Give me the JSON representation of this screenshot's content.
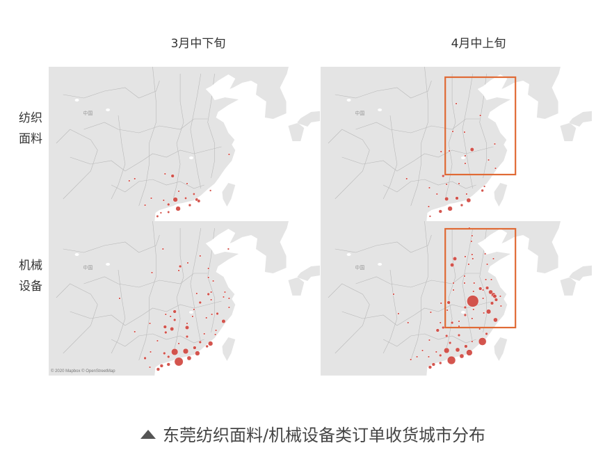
{
  "columns": [
    "3月中下旬",
    "4月中上旬"
  ],
  "rows": [
    "纺织\n面料",
    "机械\n设备"
  ],
  "row_lines": [
    [
      "纺织",
      "面料"
    ],
    [
      "机械",
      "设备"
    ]
  ],
  "map_label": "中国",
  "attribution": "© 2020 Mapbox © OpenStreetMap",
  "caption": "东莞纺织面料/机械设备类订单收货城市分布",
  "colors": {
    "bubble": "#d0463f",
    "highlight_box": "#e06a35",
    "land": "#e4e4e4",
    "sea": "#ffffff"
  },
  "chart_data": {
    "type": "bubble-map",
    "size_unit": "relative order volume",
    "panels": [
      {
        "row": "纺织面料",
        "column": "3月中下旬",
        "highlight_box": null,
        "points": [
          [
            112.9,
            26.3,
            3
          ],
          [
            111.8,
            26.6,
            1
          ],
          [
            107.4,
            25.9,
            1
          ],
          [
            106.6,
            25.6,
            1
          ],
          [
            115.0,
            25.2,
            1
          ],
          [
            118.4,
            24.2,
            1
          ],
          [
            113.8,
            24.1,
            1
          ],
          [
            116.0,
            23.7,
            1.5
          ],
          [
            113.3,
            22.9,
            6
          ],
          [
            114.8,
            23.1,
            1.5
          ],
          [
            116.4,
            22.9,
            2.5
          ],
          [
            116.7,
            22.7,
            2.5
          ],
          [
            111.6,
            22.8,
            1
          ],
          [
            109.8,
            23.1,
            1
          ],
          [
            108.9,
            22.1,
            1
          ],
          [
            112.3,
            22.2,
            2
          ],
          [
            115.4,
            22.1,
            2
          ],
          [
            113.7,
            21.6,
            6
          ],
          [
            112.3,
            21.1,
            1.5
          ],
          [
            111.2,
            21.0,
            1
          ],
          [
            110.7,
            20.5,
            1.5
          ],
          [
            121.1,
            29.4,
            1
          ]
        ]
      },
      {
        "row": "纺织面料",
        "column": "4月中上旬",
        "highlight_box": {
          "lon": [
            113.0,
            123.2
          ],
          "lat": [
            26.5,
            40.5
          ]
        },
        "points": [
          [
            114.6,
            36.7,
            1
          ],
          [
            118.1,
            35.0,
            1
          ],
          [
            114.1,
            32.7,
            1
          ],
          [
            115.8,
            32.6,
            1
          ],
          [
            116.9,
            30.1,
            4
          ],
          [
            120.2,
            30.9,
            1
          ],
          [
            113.6,
            29.9,
            1
          ],
          [
            112.4,
            29.8,
            1
          ],
          [
            115.9,
            29.2,
            1
          ],
          [
            115.9,
            28.1,
            1
          ],
          [
            119.3,
            28.6,
            1
          ],
          [
            120.3,
            27.4,
            1
          ],
          [
            112.7,
            26.3,
            2
          ],
          [
            107.4,
            25.9,
            1
          ],
          [
            113.2,
            25.1,
            1
          ],
          [
            115.0,
            25.2,
            1
          ],
          [
            118.7,
            24.8,
            1
          ],
          [
            118.4,
            24.2,
            2
          ],
          [
            110.7,
            24.6,
            1
          ],
          [
            111.8,
            23.7,
            1
          ],
          [
            116.1,
            23.7,
            1
          ],
          [
            113.2,
            23.0,
            4
          ],
          [
            114.7,
            23.1,
            3
          ],
          [
            116.4,
            22.8,
            5
          ],
          [
            115.4,
            22.1,
            2
          ],
          [
            113.7,
            21.6,
            6
          ],
          [
            112.3,
            21.2,
            3
          ],
          [
            110.6,
            21.9,
            1
          ],
          [
            110.8,
            20.5,
            1
          ]
        ]
      },
      {
        "row": "机械设备",
        "column": "3月中下旬",
        "highlight_box": null,
        "points": [
          [
            111.5,
            38.0,
            1
          ],
          [
            121.0,
            38.0,
            1
          ],
          [
            116.9,
            37.0,
            1
          ],
          [
            114.0,
            35.5,
            2
          ],
          [
            115.1,
            36.0,
            1
          ],
          [
            113.8,
            34.9,
            1
          ],
          [
            118.1,
            35.2,
            1
          ],
          [
            109.9,
            34.6,
            1
          ],
          [
            118.1,
            33.9,
            1
          ],
          [
            118.8,
            33.4,
            1
          ],
          [
            118.5,
            31.8,
            1
          ],
          [
            120.5,
            31.8,
            1
          ],
          [
            118.1,
            31.5,
            2
          ],
          [
            116.4,
            31.6,
            1
          ],
          [
            120.3,
            31.1,
            1
          ],
          [
            121.1,
            30.9,
            1
          ],
          [
            118.5,
            30.7,
            1
          ],
          [
            116.9,
            30.3,
            2
          ],
          [
            121.1,
            29.6,
            1
          ],
          [
            105.2,
            30.9,
            1
          ],
          [
            113.2,
            29.0,
            3
          ],
          [
            116.0,
            29.3,
            1
          ],
          [
            115.8,
            28.3,
            1
          ],
          [
            117.8,
            28.1,
            1
          ],
          [
            118.6,
            28.6,
            1
          ],
          [
            119.4,
            28.7,
            2
          ],
          [
            111.9,
            28.6,
            1
          ],
          [
            112.6,
            28.3,
            1
          ],
          [
            113.2,
            27.8,
            2
          ],
          [
            120.3,
            27.6,
            4
          ],
          [
            109.6,
            27.3,
            1
          ],
          [
            115.0,
            27.3,
            1
          ],
          [
            111.8,
            26.8,
            3
          ],
          [
            112.8,
            26.5,
            4
          ],
          [
            115.0,
            26.7,
            4
          ],
          [
            107.4,
            26.1,
            1
          ],
          [
            111.9,
            26.0,
            2
          ],
          [
            119.2,
            26.3,
            1
          ],
          [
            119.1,
            25.7,
            1
          ],
          [
            115.0,
            25.4,
            2
          ],
          [
            117.5,
            25.8,
            1
          ],
          [
            110.7,
            24.8,
            1
          ],
          [
            113.8,
            24.4,
            1
          ],
          [
            116.9,
            24.6,
            2
          ],
          [
            118.4,
            24.4,
            6
          ],
          [
            117.9,
            24.0,
            2
          ],
          [
            116.1,
            23.8,
            3
          ],
          [
            113.2,
            23.2,
            12
          ],
          [
            114.8,
            23.3,
            8
          ],
          [
            116.5,
            23.0,
            6
          ],
          [
            111.7,
            23.0,
            2
          ],
          [
            109.7,
            23.2,
            1
          ],
          [
            108.9,
            22.3,
            2
          ],
          [
            112.3,
            22.5,
            2
          ],
          [
            115.3,
            22.3,
            5
          ],
          [
            113.8,
            21.8,
            20
          ],
          [
            112.3,
            21.4,
            3
          ],
          [
            111.3,
            21.2,
            3
          ],
          [
            110.8,
            20.7,
            3
          ],
          [
            109.6,
            21.0,
            1
          ]
        ]
      },
      {
        "row": "机械设备",
        "column": "4月中上旬",
        "highlight_box": {
          "lon": [
            113.0,
            123.2
          ],
          "lat": [
            26.7,
            40.9
          ]
        },
        "points": [
          [
            116.8,
            39.1,
            1
          ],
          [
            116.5,
            41.0,
            1
          ],
          [
            116.9,
            39.9,
            1
          ],
          [
            114.4,
            36.6,
            4
          ],
          [
            114.0,
            35.7,
            4
          ],
          [
            115.9,
            36.9,
            1
          ],
          [
            116.9,
            37.2,
            1
          ],
          [
            117.0,
            36.6,
            1
          ],
          [
            118.8,
            37.3,
            1
          ],
          [
            120.0,
            36.6,
            1
          ],
          [
            119.1,
            35.8,
            1
          ],
          [
            116.4,
            35.8,
            1
          ],
          [
            115.8,
            34.1,
            1
          ],
          [
            114.2,
            33.1,
            1
          ],
          [
            115.8,
            33.1,
            1
          ],
          [
            117.2,
            33.1,
            1
          ],
          [
            118.9,
            33.6,
            1
          ],
          [
            119.7,
            33.6,
            1
          ],
          [
            118.1,
            32.3,
            3
          ],
          [
            118.5,
            32.1,
            1
          ],
          [
            119.1,
            32.4,
            3
          ],
          [
            119.6,
            31.8,
            5
          ],
          [
            120.0,
            31.4,
            5
          ],
          [
            120.2,
            31.2,
            4
          ],
          [
            120.4,
            30.7,
            3
          ],
          [
            121.0,
            31.2,
            1
          ],
          [
            117.1,
            31.9,
            1
          ],
          [
            114.2,
            32.1,
            1
          ],
          [
            117.0,
            30.5,
            36
          ],
          [
            118.5,
            30.9,
            1
          ],
          [
            119.8,
            30.2,
            3
          ],
          [
            121.1,
            29.8,
            1
          ],
          [
            113.5,
            30.3,
            3
          ],
          [
            112.4,
            30.2,
            1
          ],
          [
            115.9,
            29.6,
            2
          ],
          [
            117.1,
            29.3,
            1
          ],
          [
            119.3,
            29.0,
            6
          ],
          [
            118.6,
            28.8,
            1
          ],
          [
            113.3,
            29.2,
            1
          ],
          [
            115.9,
            28.5,
            2
          ],
          [
            116.9,
            28.0,
            1
          ],
          [
            120.3,
            27.8,
            5
          ],
          [
            105.5,
            31.5,
            1
          ],
          [
            110.9,
            28.9,
            1
          ],
          [
            106.2,
            28.7,
            1
          ],
          [
            107.6,
            27.4,
            1
          ],
          [
            114.0,
            27.4,
            2
          ],
          [
            115.0,
            27.6,
            1
          ],
          [
            112.3,
            27.4,
            1
          ],
          [
            111.9,
            26.3,
            3
          ],
          [
            112.7,
            26.7,
            2
          ],
          [
            115.0,
            26.9,
            1
          ],
          [
            119.0,
            25.8,
            2
          ],
          [
            118.0,
            26.5,
            1
          ],
          [
            113.2,
            25.5,
            2
          ],
          [
            115.0,
            25.6,
            2
          ],
          [
            110.7,
            24.9,
            1
          ],
          [
            116.9,
            24.7,
            1
          ],
          [
            118.4,
            24.7,
            16
          ],
          [
            113.7,
            24.5,
            2
          ],
          [
            116.0,
            24.0,
            3
          ],
          [
            113.2,
            23.4,
            8
          ],
          [
            114.8,
            23.5,
            5
          ],
          [
            116.5,
            23.1,
            10
          ],
          [
            112.3,
            22.7,
            2
          ],
          [
            109.7,
            23.4,
            1
          ],
          [
            111.7,
            23.2,
            1
          ],
          [
            108.9,
            22.5,
            1
          ],
          [
            115.4,
            22.6,
            5
          ],
          [
            113.9,
            22.0,
            18
          ],
          [
            112.3,
            21.6,
            2
          ],
          [
            111.3,
            21.4,
            3
          ],
          [
            110.8,
            21.0,
            3
          ],
          [
            108.0,
            22.1,
            1
          ],
          [
            110.6,
            22.5,
            1
          ]
        ]
      }
    ]
  }
}
